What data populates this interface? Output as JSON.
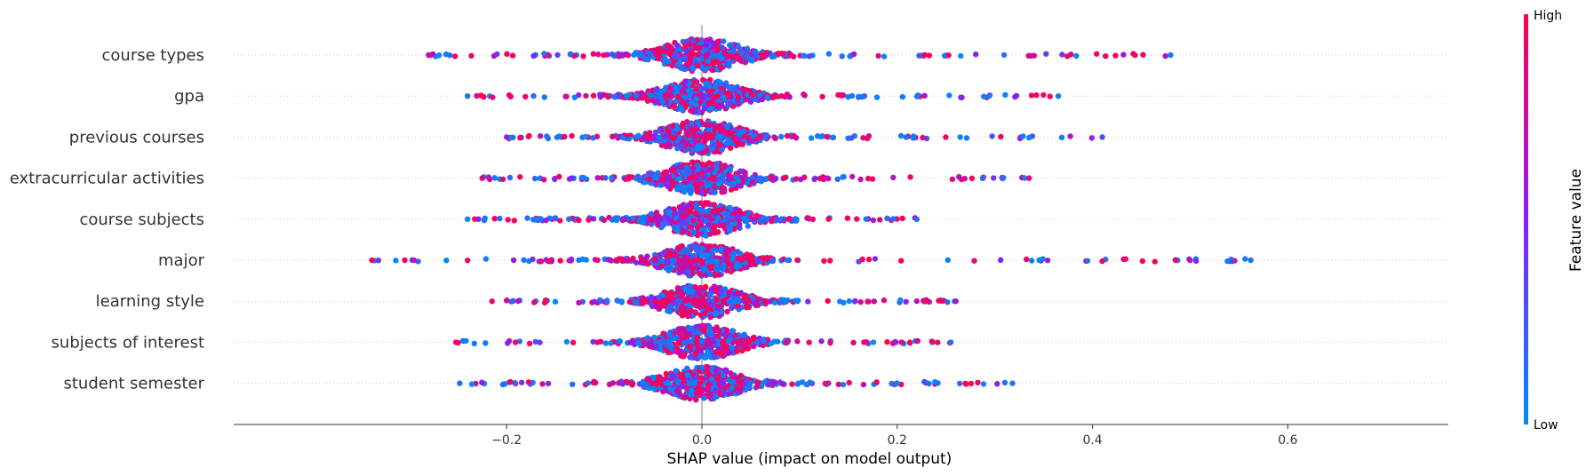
{
  "chart_data": {
    "type": "scatter",
    "subtype": "shap-beeswarm",
    "title": "",
    "xlabel": "SHAP value (impact on model output)",
    "ylabel": "",
    "xlim": [
      -0.38,
      0.605
    ],
    "x_ticks": [
      -0.2,
      0.0,
      0.2,
      0.4,
      0.6
    ],
    "x_tick_labels": [
      "−0.2",
      "0.0",
      "0.2",
      "0.4",
      "0.6"
    ],
    "grid": false,
    "zero_line": true,
    "features": [
      {
        "name": "course types",
        "xmin": -0.28,
        "xmax": 0.48
      },
      {
        "name": "gpa",
        "xmin": -0.24,
        "xmax": 0.365
      },
      {
        "name": "previous courses",
        "xmin": -0.2,
        "xmax": 0.41
      },
      {
        "name": "extracurricular activities",
        "xmin": -0.225,
        "xmax": 0.335
      },
      {
        "name": "course subjects",
        "xmin": -0.24,
        "xmax": 0.22
      },
      {
        "name": "major",
        "xmin": -0.338,
        "xmax": 0.562
      },
      {
        "name": "learning style",
        "xmin": -0.215,
        "xmax": 0.26
      },
      {
        "name": "subjects of interest",
        "xmin": -0.252,
        "xmax": 0.255
      },
      {
        "name": "student semester",
        "xmin": -0.248,
        "xmax": 0.318
      }
    ],
    "colorbar": {
      "label": "Feature value",
      "high_label": "High",
      "low_label": "Low",
      "high_color": "#ff0052",
      "mid_color": "#8b1ef5",
      "low_color": "#008bfb"
    }
  }
}
